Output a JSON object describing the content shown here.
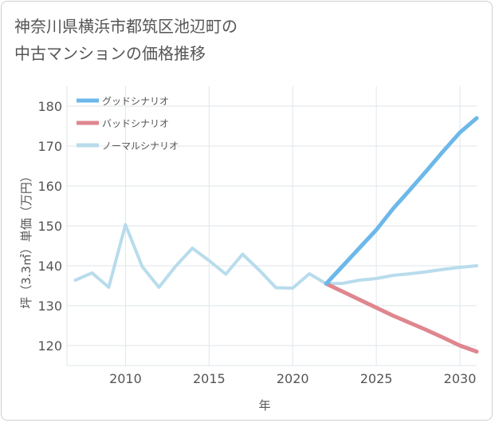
{
  "title_line1": "神奈川県横浜市都筑区池辺町の",
  "title_line2": "中古マンションの価格推移",
  "chart_data": {
    "type": "line",
    "title": "神奈川県横浜市都筑区池辺町の中古マンションの価格推移",
    "xlabel": "年",
    "ylabel": "坪（3.3㎡）単価（万円）",
    "xlim": [
      2006.5,
      2031
    ],
    "ylim": [
      115,
      185
    ],
    "x_ticks": [
      2010,
      2015,
      2020,
      2025,
      2030
    ],
    "y_ticks": [
      120,
      130,
      140,
      150,
      160,
      170,
      180
    ],
    "grid": true,
    "legend_position": "top-left",
    "series": [
      {
        "name": "グッドシナリオ",
        "color": "#6cb8ea",
        "x": [
          2022,
          2023,
          2024,
          2025,
          2026,
          2027,
          2028,
          2029,
          2030,
          2031
        ],
        "values": [
          135.5,
          140.0,
          144.5,
          149.0,
          154.3,
          159.0,
          163.8,
          168.7,
          173.4,
          177.0
        ]
      },
      {
        "name": "バッドシナリオ",
        "color": "#df868f",
        "x": [
          2022,
          2023,
          2024,
          2025,
          2026,
          2027,
          2028,
          2029,
          2030,
          2031
        ],
        "values": [
          135.5,
          133.5,
          131.5,
          129.5,
          127.5,
          125.7,
          123.9,
          122.0,
          120.0,
          118.5
        ]
      },
      {
        "name": "ノーマルシナリオ",
        "color": "#b8dcec",
        "x": [
          2007,
          2008,
          2009,
          2010,
          2011,
          2012,
          2013,
          2014,
          2015,
          2016,
          2017,
          2018,
          2019,
          2020,
          2021,
          2022,
          2023,
          2024,
          2025,
          2026,
          2027,
          2028,
          2029,
          2030,
          2031
        ],
        "values": [
          136.4,
          138.2,
          134.6,
          150.3,
          139.8,
          134.6,
          139.9,
          144.4,
          141.3,
          137.9,
          142.9,
          138.9,
          134.5,
          134.4,
          138.0,
          135.5,
          135.6,
          136.4,
          136.8,
          137.6,
          138.0,
          138.5,
          139.1,
          139.6,
          140.0
        ]
      }
    ]
  }
}
